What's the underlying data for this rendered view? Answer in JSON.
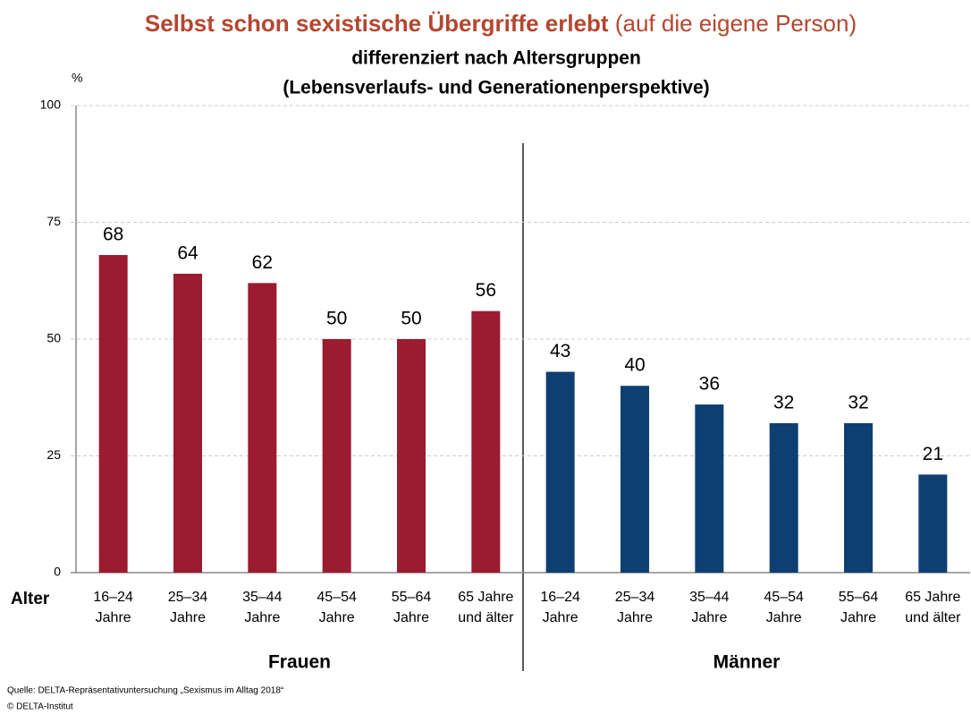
{
  "chart_data": {
    "type": "bar",
    "title": "Selbst schon sexistische Übergriffe erlebt",
    "title_suffix": "(auf die eigene Person)",
    "subtitle": [
      "differenziert nach Altersgruppen",
      "(Lebensverlaufs- und Generationenperspektive)"
    ],
    "y_label": "%",
    "x_label": "Alter",
    "categories": [
      [
        "16–24",
        "Jahre"
      ],
      [
        "25–34",
        "Jahre"
      ],
      [
        "35–44",
        "Jahre"
      ],
      [
        "45–54",
        "Jahre"
      ],
      [
        "55–64",
        "Jahre"
      ],
      [
        "65 Jahre",
        "und älter"
      ],
      [
        "16–24",
        "Jahre"
      ],
      [
        "25–34",
        "Jahre"
      ],
      [
        "35–44",
        "Jahre"
      ],
      [
        "45–54",
        "Jahre"
      ],
      [
        "55–64",
        "Jahre"
      ],
      [
        "65 Jahre",
        "und älter"
      ]
    ],
    "series": [
      {
        "name": "Frauen",
        "color": "#9b1b30",
        "values": [
          68,
          64,
          62,
          50,
          50,
          56,
          null,
          null,
          null,
          null,
          null,
          null
        ]
      },
      {
        "name": "Männer",
        "color": "#0e3f73",
        "values": [
          null,
          null,
          null,
          null,
          null,
          null,
          43,
          40,
          36,
          32,
          32,
          21
        ]
      }
    ],
    "ylim": [
      0,
      100
    ],
    "yticks": [
      0,
      25,
      50,
      75,
      100
    ],
    "grid": true,
    "source": [
      "Quelle: DELTA-Repräsentativuntersuchung „Sexismus im Alltag 2018“",
      "© DELTA-Institut"
    ]
  }
}
